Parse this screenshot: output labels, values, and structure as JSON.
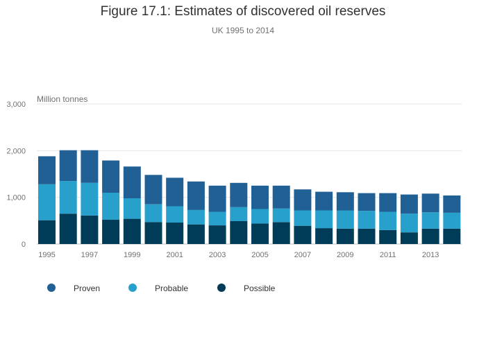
{
  "chart_data": {
    "type": "bar",
    "stacked": true,
    "title": "Figure 17.1: Estimates of discovered oil reserves",
    "subtitle": "UK 1995 to 2014",
    "ylabel": "Million tonnes",
    "xlabel": "",
    "ylim": [
      0,
      3000
    ],
    "yticks": [
      0,
      1000,
      2000,
      3000
    ],
    "ytick_labels": [
      "0",
      "1,000",
      "2,000",
      "3,000"
    ],
    "categories": [
      "1995",
      "1996",
      "1997",
      "1998",
      "1999",
      "2000",
      "2001",
      "2002",
      "2003",
      "2004",
      "2005",
      "2006",
      "2007",
      "2008",
      "2009",
      "2010",
      "2011",
      "2012",
      "2013",
      "2014"
    ],
    "xtick_labels": [
      "1995",
      "1997",
      "1999",
      "2001",
      "2003",
      "2005",
      "2007",
      "2009",
      "2011",
      "2013"
    ],
    "series": [
      {
        "name": "Possible",
        "color": "#003c57",
        "values": [
          510,
          650,
          610,
          520,
          540,
          470,
          460,
          420,
          400,
          490,
          440,
          470,
          390,
          340,
          330,
          330,
          300,
          250,
          330,
          330
        ]
      },
      {
        "name": "Probable",
        "color": "#27a0cc",
        "values": [
          770,
          700,
          700,
          580,
          440,
          380,
          350,
          310,
          290,
          300,
          310,
          290,
          330,
          380,
          390,
          380,
          390,
          400,
          350,
          340
        ]
      },
      {
        "name": "Proven",
        "color": "#206095",
        "values": [
          600,
          660,
          700,
          690,
          680,
          630,
          610,
          610,
          560,
          520,
          500,
          490,
          450,
          400,
          390,
          380,
          400,
          410,
          400,
          370
        ]
      }
    ],
    "legend": {
      "position": "bottom-left",
      "items": [
        {
          "label": "Proven",
          "color": "#206095"
        },
        {
          "label": "Probable",
          "color": "#27a0cc"
        },
        {
          "label": "Possible",
          "color": "#003c57"
        }
      ]
    },
    "grid": true
  }
}
